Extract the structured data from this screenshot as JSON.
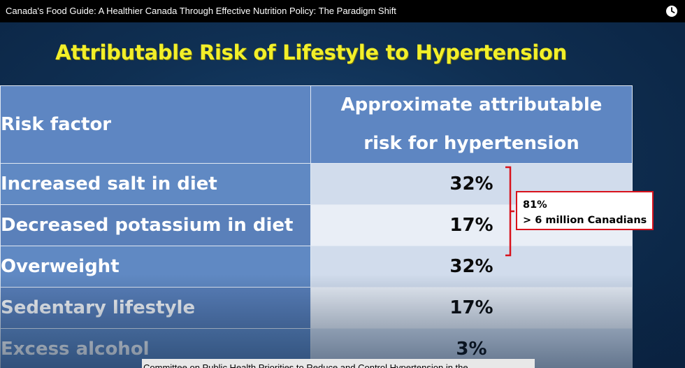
{
  "video": {
    "title": "Canada's Food Guide: A Healthier Canada Through Effective Nutrition Policy: The Paradigm Shift",
    "watch_later_icon": "clock-icon"
  },
  "slide": {
    "title": "Attributable Risk of Lifestyle to Hypertension",
    "table": {
      "header_factor": "Risk factor",
      "header_risk_line1": "Approximate attributable",
      "header_risk_line2": "risk for hypertension",
      "rows": [
        {
          "factor": "Increased salt in diet",
          "risk": "32%"
        },
        {
          "factor": "Decreased potassium in diet",
          "risk": "17%"
        },
        {
          "factor": "Overweight",
          "risk": "32%"
        },
        {
          "factor": "Sedentary lifestyle",
          "risk": "17%"
        },
        {
          "factor": "Excess alcohol",
          "risk": "3%"
        }
      ]
    },
    "callout": {
      "line1": "81%",
      "line2": "> 6 million Canadians"
    },
    "footnote": "Committee on Public Health Priorities to Reduce and Control Hypertension in the",
    "colors": {
      "title": "#f2ef2a",
      "header_bg": "#5e86c2",
      "callout_border": "#d8121c"
    }
  }
}
